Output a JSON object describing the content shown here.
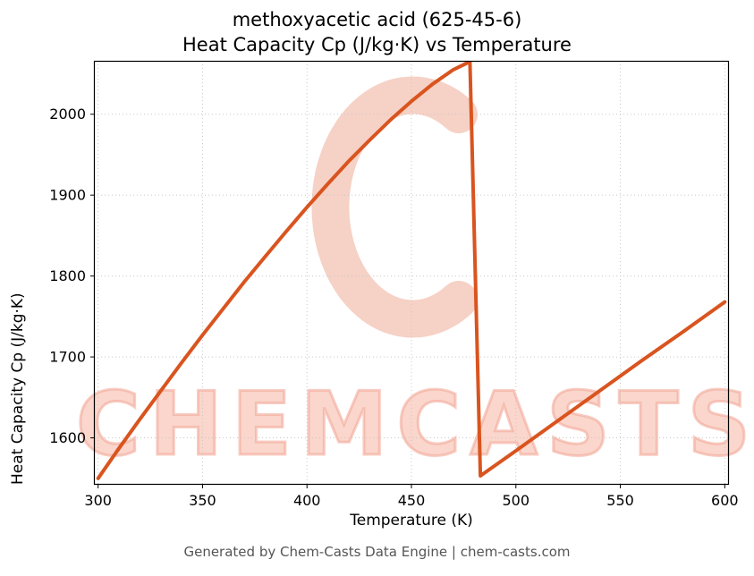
{
  "footer": "Generated by Chem-Casts Data Engine | chem-casts.com",
  "watermark": {
    "text": "CHEMCASTS",
    "text_color": "#f6b5a3",
    "logo_color": "#ed9a81"
  },
  "chart_data": {
    "type": "line",
    "title_line1": "methoxyacetic acid (625-45-6)",
    "title_line2": "Heat Capacity Cp (J/kg·K) vs Temperature",
    "xlabel": "Temperature (K)",
    "ylabel": "Heat Capacity Cp (J/kg·K)",
    "xlim": [
      298,
      602
    ],
    "ylim": [
      1542,
      2066
    ],
    "xticks": [
      300,
      350,
      400,
      450,
      500,
      550,
      600
    ],
    "yticks": [
      1600,
      1700,
      1800,
      1900,
      2000
    ],
    "grid": true,
    "grid_style": "dotted",
    "grid_color": "#c8c8c8",
    "line_color": "#d9541f",
    "line_width": 4,
    "legend": "none",
    "series": [
      {
        "name": "Heat Capacity Cp",
        "points": [
          [
            300,
            1550
          ],
          [
            310,
            1587
          ],
          [
            320,
            1623
          ],
          [
            330,
            1658
          ],
          [
            340,
            1693
          ],
          [
            350,
            1727
          ],
          [
            360,
            1760
          ],
          [
            370,
            1793
          ],
          [
            380,
            1824
          ],
          [
            390,
            1855
          ],
          [
            400,
            1885
          ],
          [
            410,
            1914
          ],
          [
            420,
            1942
          ],
          [
            430,
            1968
          ],
          [
            440,
            1993
          ],
          [
            450,
            2016
          ],
          [
            460,
            2037
          ],
          [
            470,
            2055
          ],
          [
            478,
            2065
          ],
          [
            483,
            1553
          ],
          [
            500,
            1584
          ],
          [
            520,
            1621
          ],
          [
            540,
            1658
          ],
          [
            560,
            1695
          ],
          [
            580,
            1731
          ],
          [
            600,
            1768
          ]
        ]
      }
    ],
    "annotations": {
      "peak": {
        "x": 478,
        "y": 2065
      },
      "discontinuity_drop_to": {
        "x": 483,
        "y": 1553
      }
    }
  }
}
